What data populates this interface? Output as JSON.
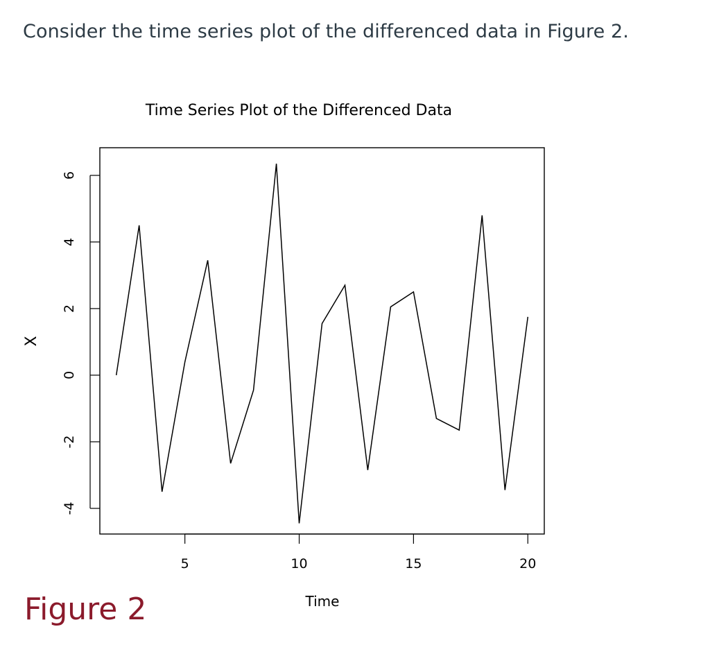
{
  "question": {
    "text": "Consider the time series plot of the differenced data in Figure 2."
  },
  "figure": {
    "caption": "Figure 2",
    "caption_color": "#8b1a2b"
  },
  "chart_data": {
    "type": "line",
    "title": "Time Series Plot of the Differenced Data",
    "xlabel": "Time",
    "ylabel": "X",
    "x": [
      2,
      3,
      4,
      5,
      6,
      7,
      8,
      9,
      10,
      11,
      12,
      13,
      14,
      15,
      16,
      17,
      18,
      19,
      20
    ],
    "values": [
      0.0,
      4.5,
      -3.5,
      0.4,
      3.45,
      -2.65,
      -0.45,
      6.35,
      -4.45,
      1.55,
      2.7,
      -2.85,
      2.05,
      2.5,
      -1.3,
      -1.65,
      4.8,
      -3.45,
      1.75
    ],
    "xticks": [
      "5",
      "10",
      "15",
      "20"
    ],
    "yticks": [
      "-4",
      "-2",
      "0",
      "2",
      "4",
      "6"
    ],
    "xlim": [
      1.28,
      20.72
    ],
    "ylim": [
      -4.77,
      6.83
    ],
    "grid": false,
    "line_color": "#000000"
  }
}
